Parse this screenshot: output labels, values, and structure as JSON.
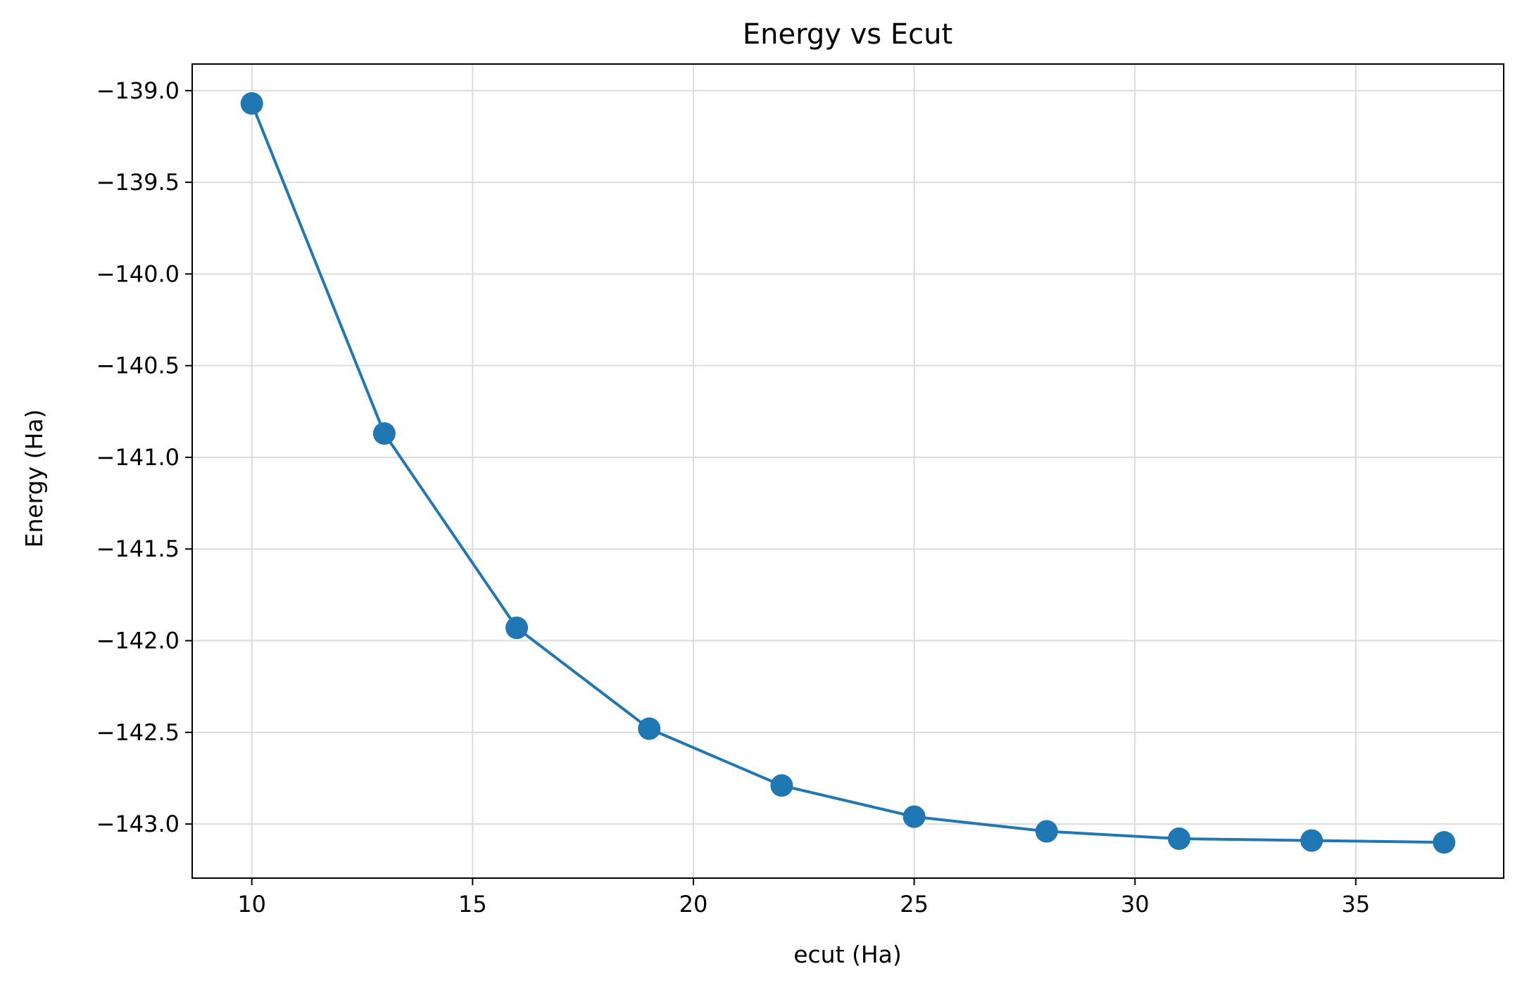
{
  "chart_data": {
    "type": "line",
    "title": "Energy vs Ecut",
    "xlabel": "ecut (Ha)",
    "ylabel": "Energy (Ha)",
    "xlim": [
      8.65,
      38.35
    ],
    "ylim": [
      -143.295,
      -138.855
    ],
    "xticks": [
      10,
      15,
      20,
      25,
      30,
      35
    ],
    "xtick_labels": [
      "10",
      "15",
      "20",
      "25",
      "30",
      "35"
    ],
    "yticks": [
      -139.0,
      -139.5,
      -140.0,
      -140.5,
      -141.0,
      -141.5,
      -142.0,
      -142.5,
      -143.0
    ],
    "ytick_labels": [
      "−139.0",
      "−139.5",
      "−140.0",
      "−140.5",
      "−141.0",
      "−141.5",
      "−142.0",
      "−142.5",
      "−143.0"
    ],
    "grid": true,
    "series": [
      {
        "name": "Energy",
        "color": "#1f77b4",
        "marker": "circle",
        "x": [
          10,
          13,
          16,
          19,
          22,
          25,
          28,
          31,
          34,
          37
        ],
        "y": [
          -139.07,
          -140.87,
          -141.93,
          -142.48,
          -142.79,
          -142.96,
          -143.04,
          -143.08,
          -143.09,
          -143.1
        ]
      }
    ]
  }
}
